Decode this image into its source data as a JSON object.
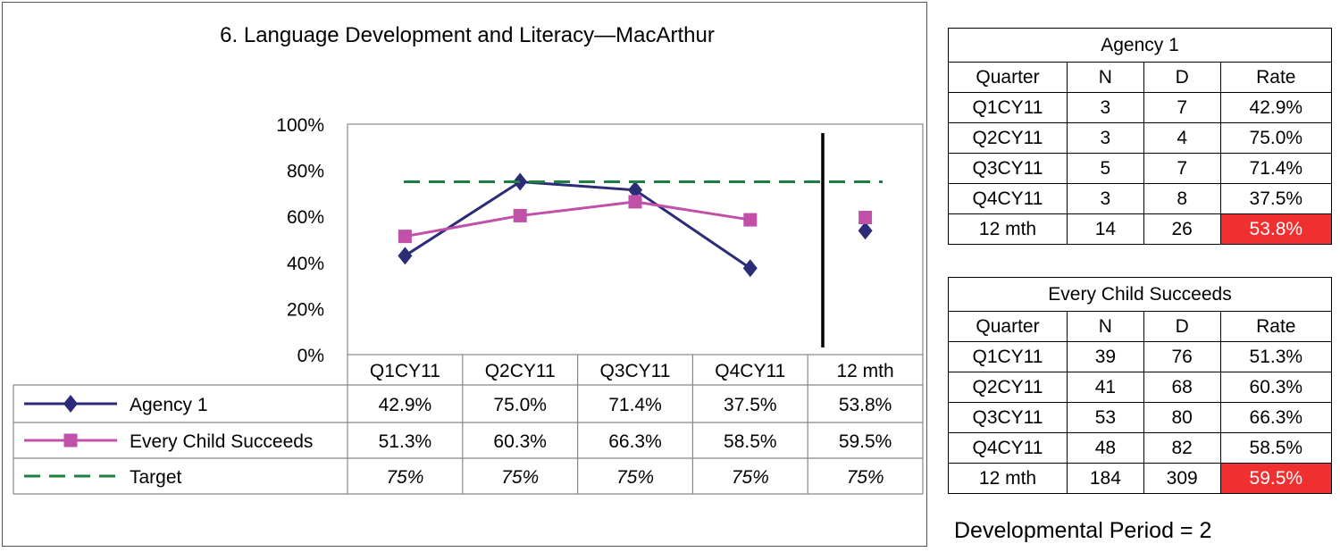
{
  "chart_data": {
    "type": "line",
    "title": "6. Language Development and Literacy—MacArthur",
    "categories": [
      "Q1CY11",
      "Q2CY11",
      "Q3CY11",
      "Q4CY11",
      "12 mth"
    ],
    "ylim": [
      0,
      100
    ],
    "yticks": [
      "0%",
      "20%",
      "40%",
      "60%",
      "80%",
      "100%"
    ],
    "legend_position": "table-below",
    "series": [
      {
        "name": "Agency 1",
        "values": [
          42.9,
          75.0,
          71.4,
          37.5,
          53.8
        ],
        "labels": [
          "42.9%",
          "75.0%",
          "71.4%",
          "37.5%",
          "53.8%"
        ],
        "color": "#2b2b78",
        "marker": "diamond"
      },
      {
        "name": "Every Child Succeeds",
        "values": [
          51.3,
          60.3,
          66.3,
          58.5,
          59.5
        ],
        "labels": [
          "51.3%",
          "60.3%",
          "66.3%",
          "58.5%",
          "59.5%"
        ],
        "color": "#c050a8",
        "marker": "square"
      },
      {
        "name": "Target",
        "values": [
          75,
          75,
          75,
          75,
          75
        ],
        "labels": [
          "75%",
          "75%",
          "75%",
          "75%",
          "75%"
        ],
        "color": "#1e8040",
        "dashed": true
      }
    ]
  },
  "tables": [
    {
      "title": "Agency 1",
      "headers": [
        "Quarter",
        "N",
        "D",
        "Rate"
      ],
      "rows": [
        [
          "Q1CY11",
          "3",
          "7",
          "42.9%"
        ],
        [
          "Q2CY11",
          "3",
          "4",
          "75.0%"
        ],
        [
          "Q3CY11",
          "5",
          "7",
          "71.4%"
        ],
        [
          "Q4CY11",
          "3",
          "8",
          "37.5%"
        ],
        [
          "12 mth",
          "14",
          "26",
          "53.8%"
        ]
      ]
    },
    {
      "title": "Every Child Succeeds",
      "headers": [
        "Quarter",
        "N",
        "D",
        "Rate"
      ],
      "rows": [
        [
          "Q1CY11",
          "39",
          "76",
          "51.3%"
        ],
        [
          "Q2CY11",
          "41",
          "68",
          "60.3%"
        ],
        [
          "Q3CY11",
          "53",
          "80",
          "66.3%"
        ],
        [
          "Q4CY11",
          "48",
          "82",
          "58.5%"
        ],
        [
          "12 mth",
          "184",
          "309",
          "59.5%"
        ]
      ]
    }
  ],
  "developmental_period": "Developmental Period = 2",
  "colors": {
    "alert": "#f03030"
  }
}
